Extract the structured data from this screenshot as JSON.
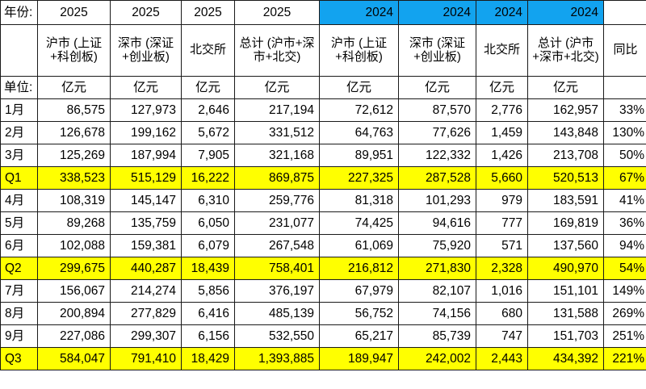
{
  "table": {
    "year_row": {
      "label": "年份:",
      "years": [
        "2025",
        "2025",
        "2025",
        "2025",
        "2024",
        "2024",
        "2024",
        "2024",
        ""
      ]
    },
    "sub_header": [
      "",
      "沪市\n(上证+科创板)",
      "深市\n(深证+创业板)",
      "北交所",
      "总计\n(沪市+深市+北交)",
      "沪市\n(上证+科创板)",
      "深市\n(深证+创业板)",
      "北交所",
      "总计\n(沪市+深市+北交)",
      "同比"
    ],
    "sub_header_display": [
      "",
      "沪市 (上证+科创板)",
      "深市 (深证+创业板)",
      "北交所",
      "总计 (沪市+深市+北交)",
      "沪市 (上证+科创板)",
      "深市 (深证+创业板)",
      "北交所",
      "总计 (沪市+深市+北交)",
      "同比"
    ],
    "unit_row": {
      "label": "单位:",
      "units": [
        "亿元",
        "亿元",
        "亿元",
        "亿元",
        "亿元",
        "亿元",
        "亿元",
        "亿元",
        ""
      ]
    },
    "rows": [
      {
        "label": "1月",
        "quarter": false,
        "values": [
          "86,575",
          "127,973",
          "2,646",
          "217,194",
          "72,612",
          "87,570",
          "2,776",
          "162,957",
          "33%"
        ]
      },
      {
        "label": "2月",
        "quarter": false,
        "values": [
          "126,678",
          "199,162",
          "5,672",
          "331,512",
          "64,763",
          "77,626",
          "1,459",
          "143,848",
          "130%"
        ]
      },
      {
        "label": "3月",
        "quarter": false,
        "values": [
          "125,269",
          "187,994",
          "7,905",
          "321,168",
          "89,951",
          "122,332",
          "1,426",
          "213,708",
          "50%"
        ]
      },
      {
        "label": "Q1",
        "quarter": true,
        "values": [
          "338,523",
          "515,129",
          "16,222",
          "869,875",
          "227,325",
          "287,528",
          "5,660",
          "520,513",
          "67%"
        ]
      },
      {
        "label": "4月",
        "quarter": false,
        "values": [
          "108,319",
          "145,147",
          "6,310",
          "259,776",
          "81,318",
          "101,293",
          "979",
          "183,591",
          "41%"
        ]
      },
      {
        "label": "5月",
        "quarter": false,
        "values": [
          "89,268",
          "135,759",
          "6,050",
          "231,077",
          "74,425",
          "94,616",
          "777",
          "169,819",
          "36%"
        ]
      },
      {
        "label": "6月",
        "quarter": false,
        "values": [
          "102,088",
          "159,381",
          "6,079",
          "267,548",
          "61,069",
          "75,920",
          "571",
          "137,560",
          "94%"
        ]
      },
      {
        "label": "Q2",
        "quarter": true,
        "values": [
          "299,675",
          "440,287",
          "18,439",
          "758,401",
          "216,812",
          "271,830",
          "2,328",
          "490,970",
          "54%"
        ]
      },
      {
        "label": "7月",
        "quarter": false,
        "values": [
          "156,067",
          "214,274",
          "5,856",
          "376,197",
          "67,979",
          "82,107",
          "1,016",
          "151,101",
          "149%"
        ]
      },
      {
        "label": "8月",
        "quarter": false,
        "values": [
          "200,894",
          "277,829",
          "6,416",
          "485,139",
          "56,752",
          "74,156",
          "680",
          "131,588",
          "269%"
        ]
      },
      {
        "label": "9月",
        "quarter": false,
        "values": [
          "227,086",
          "299,307",
          "6,156",
          "532,550",
          "65,217",
          "85,739",
          "747",
          "151,703",
          "251%"
        ]
      },
      {
        "label": "Q3",
        "quarter": true,
        "values": [
          "584,047",
          "791,410",
          "18,429",
          "1,393,885",
          "189,947",
          "242,002",
          "2,443",
          "434,392",
          "221%"
        ]
      }
    ]
  },
  "colors": {
    "highlight_2024_header": "#12a3ef",
    "quarter_row_highlight": "#ffff00",
    "grid_border": "#1a1a1a"
  }
}
